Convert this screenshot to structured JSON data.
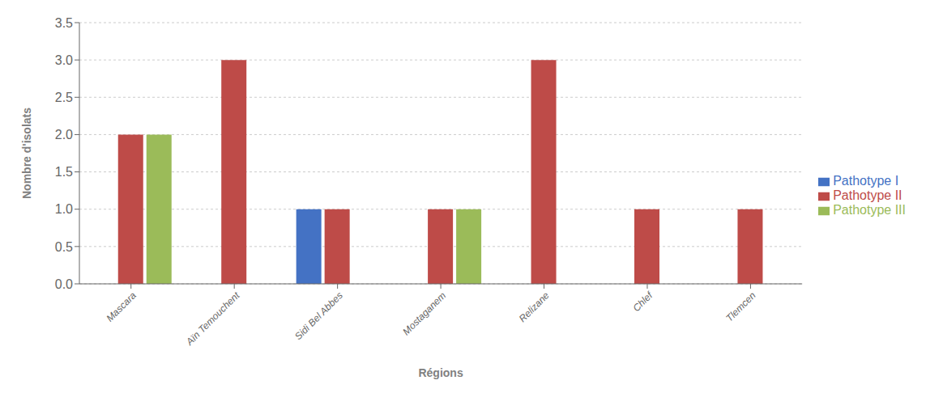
{
  "chart_data": {
    "type": "bar",
    "categories": [
      "Mascara",
      "Aïn Temouchent",
      "Sidi Bel Abbes",
      "Mostaganem",
      "Relizane",
      "Chlef",
      "Tlemcen"
    ],
    "series": [
      {
        "name": "Pathotype I",
        "color": "#4472C4",
        "values": [
          0,
          0,
          1,
          0,
          0,
          0,
          0
        ]
      },
      {
        "name": "Pathotype II",
        "color": "#BE4B48",
        "values": [
          2,
          3,
          1,
          1,
          3,
          1,
          1
        ]
      },
      {
        "name": "Pathotype III",
        "color": "#9BBB59",
        "values": [
          2,
          0,
          0,
          1,
          0,
          0,
          0
        ]
      }
    ],
    "xlabel": "Régions",
    "ylabel": "Nombre d'isolats",
    "ylim": [
      0,
      3.5
    ],
    "yticks": [
      {
        "value": 0,
        "label": "0.0"
      },
      0.5,
      {
        "value": 1,
        "label": "1.0"
      },
      1.5,
      {
        "value": 2,
        "label": "2.0"
      },
      2.5,
      {
        "value": 3,
        "label": "3.0"
      },
      3.5
    ],
    "grid": true,
    "legend": "right"
  }
}
